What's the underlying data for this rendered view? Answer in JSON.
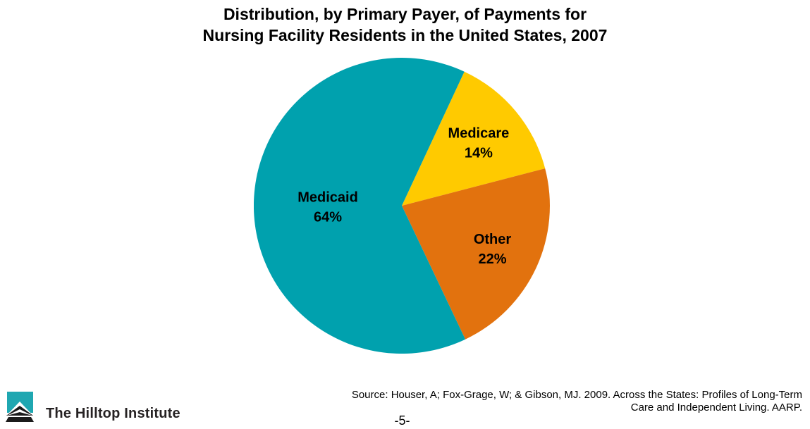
{
  "header": {
    "title_line1": "Distribution, by Primary Payer, of Payments for",
    "title_line2": "Nursing Facility Residents in the United States, 2007"
  },
  "chart_data": {
    "type": "pie",
    "title": "Distribution, by Primary Payer, of Payments for Nursing Facility Residents in the United States, 2007",
    "series": [
      {
        "name": "Medicare",
        "value": 14,
        "color": "#FFCA00"
      },
      {
        "name": "Other",
        "value": 22,
        "color": "#E2720E"
      },
      {
        "name": "Medicaid",
        "value": 64,
        "color": "#00A1AE"
      }
    ],
    "unit": "%",
    "start_angle_deg": 25,
    "labels_inside": true,
    "legend": "none",
    "label_color": "#000000"
  },
  "footer": {
    "logo_text": "The Hilltop Institute",
    "logo_teal": "#1FA7B1",
    "source_line1": "Source: Houser, A; Fox-Grage, W; & Gibson, MJ. 2009. Across the States: Profiles of Long-Term",
    "source_line2": "Care and Independent Living. AARP.",
    "page_number": "-5-"
  }
}
